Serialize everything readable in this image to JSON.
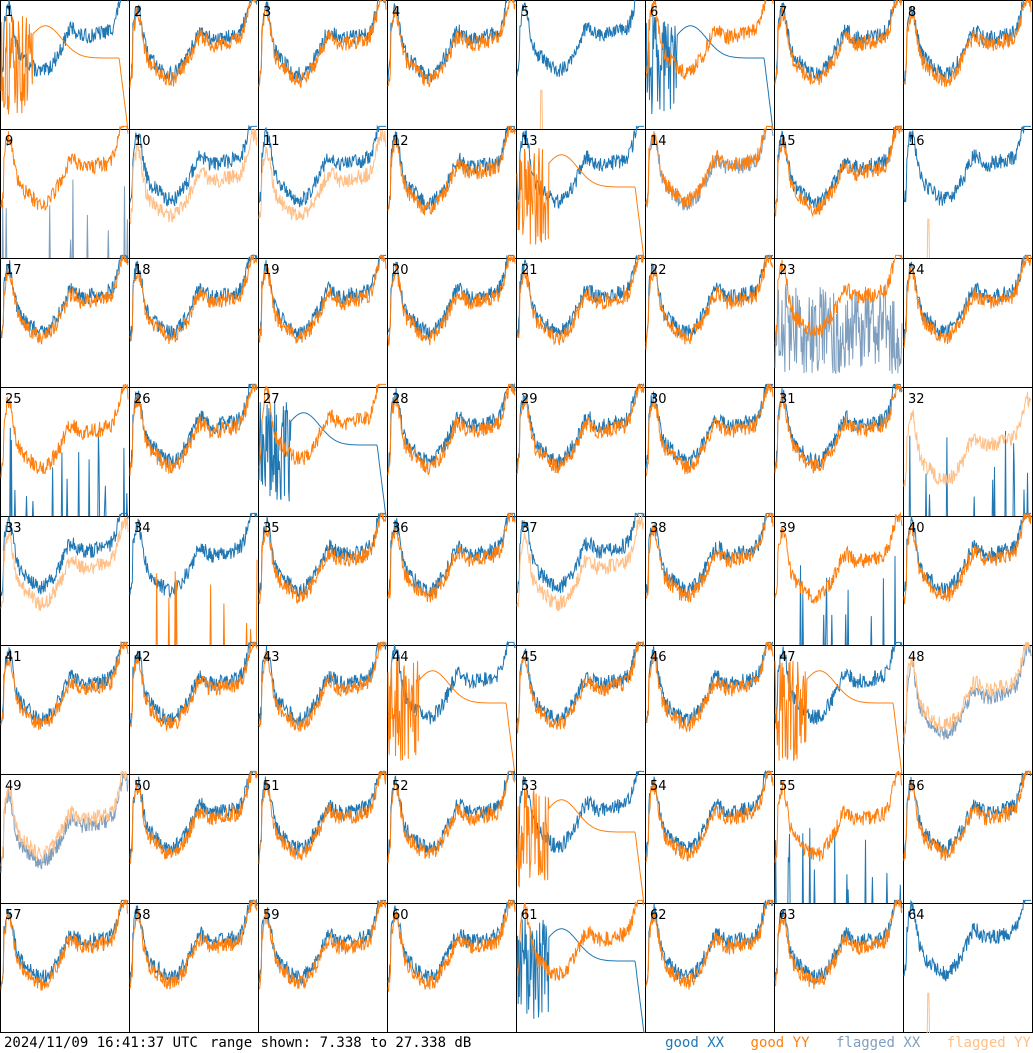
{
  "chart_data": {
    "type": "line",
    "panels": [
      "1",
      "2",
      "3",
      "4",
      "5",
      "6",
      "7",
      "8",
      "9",
      "10",
      "11",
      "12",
      "13",
      "14",
      "15",
      "16",
      "17",
      "18",
      "19",
      "20",
      "21",
      "22",
      "23",
      "24",
      "25",
      "26",
      "27",
      "28",
      "29",
      "30",
      "31",
      "32",
      "33",
      "34",
      "35",
      "36",
      "37",
      "38",
      "39",
      "40",
      "41",
      "42",
      "43",
      "44",
      "45",
      "46",
      "47",
      "48",
      "49",
      "50",
      "51",
      "52",
      "53",
      "54",
      "55",
      "56",
      "57",
      "58",
      "59",
      "60",
      "61",
      "62",
      "63",
      "64"
    ],
    "ylim": [
      7.338,
      27.338
    ],
    "y_units": "dB",
    "grid_columns": 8,
    "grid_rows": 8,
    "series": [
      {
        "name": "good XX",
        "color": "#1f77b4"
      },
      {
        "name": "good YY",
        "color": "#ff7f0e"
      },
      {
        "name": "flagged XX",
        "color": "#7f9fbf"
      },
      {
        "name": "flagged YY",
        "color": "#ffbf86"
      }
    ],
    "panel_modes": {
      "1": "xx_good_yy_decay",
      "2": "normal",
      "3": "normal",
      "4": "normal",
      "5": "yy_flat",
      "6": "xx_decay",
      "7": "normal",
      "8": "normal",
      "9": "xx_spiky_flagged",
      "10": "yy_flagged_low",
      "11": "yy_flagged_low",
      "12": "normal",
      "13": "xx_good_yy_decay",
      "14": "xx_flagged_partial",
      "15": "normal",
      "16": "yy_flat",
      "17": "normal",
      "18": "normal",
      "19": "normal",
      "20": "normal",
      "21": "normal",
      "22": "normal",
      "23": "xx_noisy_flagged",
      "24": "normal",
      "25": "xx_spiky",
      "26": "normal",
      "27": "xx_decay",
      "28": "normal",
      "29": "normal",
      "30": "normal",
      "31": "normal",
      "32": "yy_flagged_spiky",
      "33": "yy_flagged_low",
      "34": "yy_spiky",
      "35": "normal",
      "36": "normal",
      "37": "yy_flagged_low",
      "38": "normal",
      "39": "xx_spiky",
      "40": "normal",
      "41": "normal",
      "42": "normal",
      "43": "normal",
      "44": "xx_good_yy_decay",
      "45": "normal",
      "46": "normal",
      "47": "xx_good_yy_decay",
      "48": "both_flagged",
      "49": "both_flagged",
      "50": "normal",
      "51": "normal",
      "52": "normal",
      "53": "xx_good_yy_decay",
      "54": "normal",
      "55": "xx_spiky",
      "56": "normal",
      "57": "normal",
      "58": "normal",
      "59": "normal",
      "60": "normal",
      "61": "xx_decay",
      "62": "normal",
      "63": "normal",
      "64": "yy_flat"
    }
  },
  "footer": {
    "timestamp": "2024/11/09 16:41:37 UTC",
    "range_text": "range shown: 7.338 to 27.338 dB",
    "legend": [
      {
        "label": "good XX",
        "color": "#1f77b4"
      },
      {
        "label": "good YY",
        "color": "#ff7f0e"
      },
      {
        "label": "flagged XX",
        "color": "#7f9fbf"
      },
      {
        "label": "flagged YY",
        "color": "#ffbf86"
      }
    ]
  }
}
